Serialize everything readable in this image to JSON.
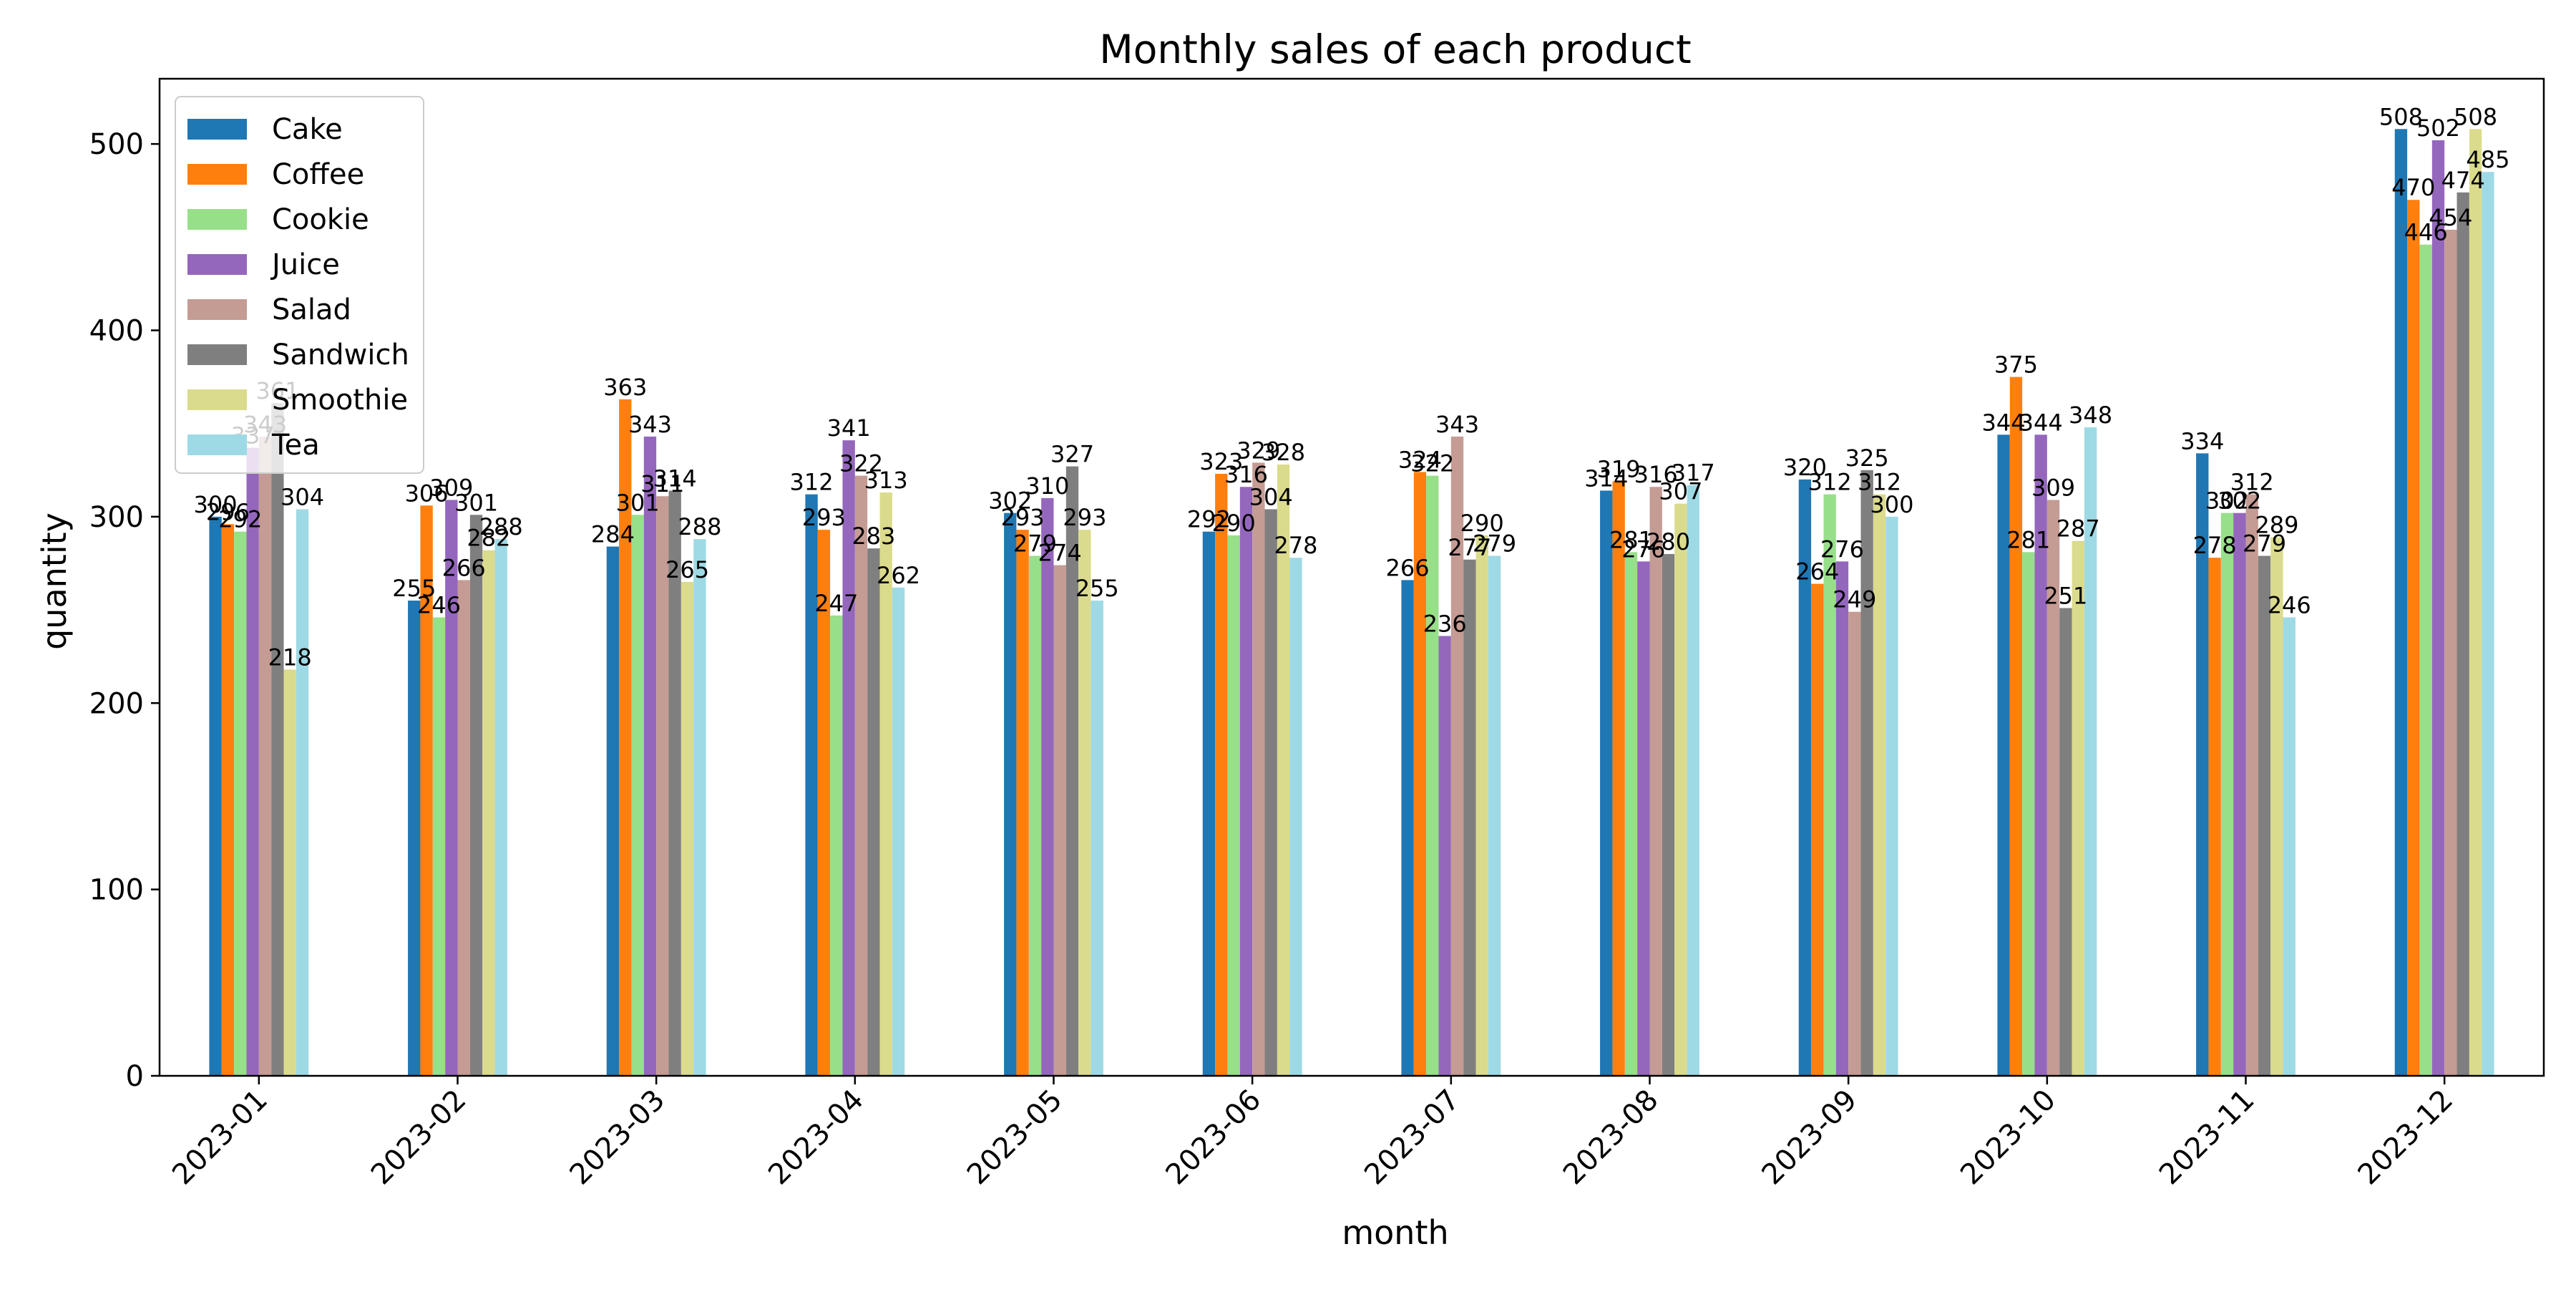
{
  "chart_data": {
    "type": "bar",
    "title": "Monthly sales of each product",
    "xlabel": "month",
    "ylabel": "quantity",
    "ylim": [
      0,
      535
    ],
    "yticks": [
      0,
      100,
      200,
      300,
      400,
      500
    ],
    "grid": false,
    "legend_position": "top-left",
    "categories": [
      "2023-01",
      "2023-02",
      "2023-03",
      "2023-04",
      "2023-05",
      "2023-06",
      "2023-07",
      "2023-08",
      "2023-09",
      "2023-10",
      "2023-11",
      "2023-12"
    ],
    "series": [
      {
        "name": "Cake",
        "color": "#1f77b4",
        "values": [
          300,
          255,
          284,
          312,
          302,
          292,
          266,
          314,
          320,
          344,
          334,
          508
        ]
      },
      {
        "name": "Coffee",
        "color": "#ff7f0e",
        "values": [
          296,
          306,
          363,
          293,
          293,
          323,
          324,
          319,
          264,
          375,
          278,
          470
        ]
      },
      {
        "name": "Cookie",
        "color": "#98df8a",
        "values": [
          292,
          246,
          301,
          247,
          279,
          290,
          322,
          281,
          312,
          281,
          302,
          446
        ]
      },
      {
        "name": "Juice",
        "color": "#9467bd",
        "values": [
          337,
          309,
          343,
          341,
          310,
          316,
          236,
          276,
          276,
          344,
          302,
          502
        ]
      },
      {
        "name": "Salad",
        "color": "#c49c94",
        "values": [
          343,
          266,
          311,
          322,
          274,
          329,
          343,
          316,
          249,
          309,
          312,
          454
        ]
      },
      {
        "name": "Sandwich",
        "color": "#7f7f7f",
        "values": [
          361,
          301,
          314,
          283,
          327,
          304,
          277,
          280,
          325,
          251,
          279,
          474
        ]
      },
      {
        "name": "Smoothie",
        "color": "#dbdb8d",
        "values": [
          218,
          282,
          265,
          313,
          293,
          328,
          290,
          307,
          312,
          287,
          289,
          508
        ]
      },
      {
        "name": "Tea",
        "color": "#9edae5",
        "values": [
          304,
          288,
          288,
          262,
          255,
          278,
          279,
          317,
          300,
          348,
          246,
          485
        ]
      }
    ]
  }
}
